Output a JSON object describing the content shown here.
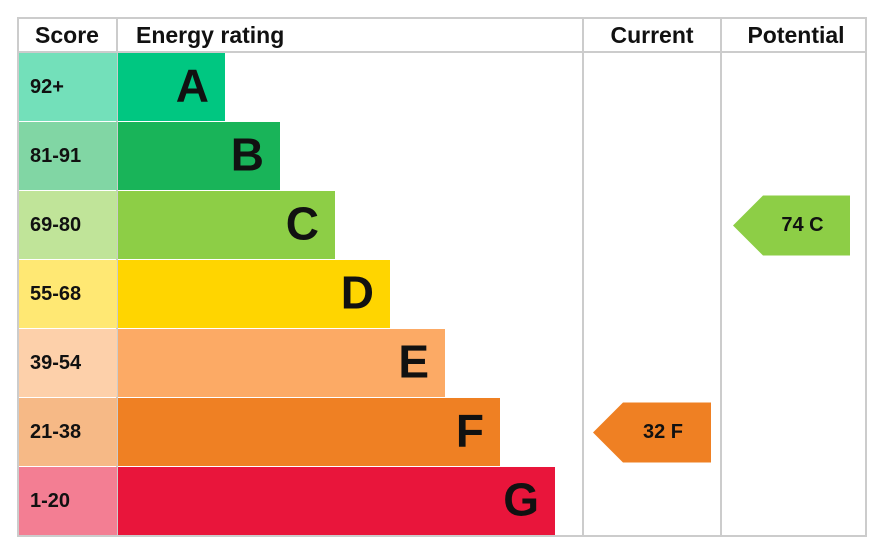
{
  "header": {
    "score": "Score",
    "energy_rating": "Energy rating",
    "current": "Current",
    "potential": "Potential"
  },
  "rows": [
    {
      "score": "92+",
      "letter": "A",
      "color": "#00c781"
    },
    {
      "score": "81-91",
      "letter": "B",
      "color": "#19b459"
    },
    {
      "score": "69-80",
      "letter": "C",
      "color": "#8dce46"
    },
    {
      "score": "55-68",
      "letter": "D",
      "color": "#ffd500"
    },
    {
      "score": "39-54",
      "letter": "E",
      "color": "#fcaa65"
    },
    {
      "score": "21-38",
      "letter": "F",
      "color": "#ef8023"
    },
    {
      "score": "1-20",
      "letter": "G",
      "color": "#e9153b"
    }
  ],
  "current": {
    "label": "32 F"
  },
  "potential": {
    "label": "74 C"
  }
}
